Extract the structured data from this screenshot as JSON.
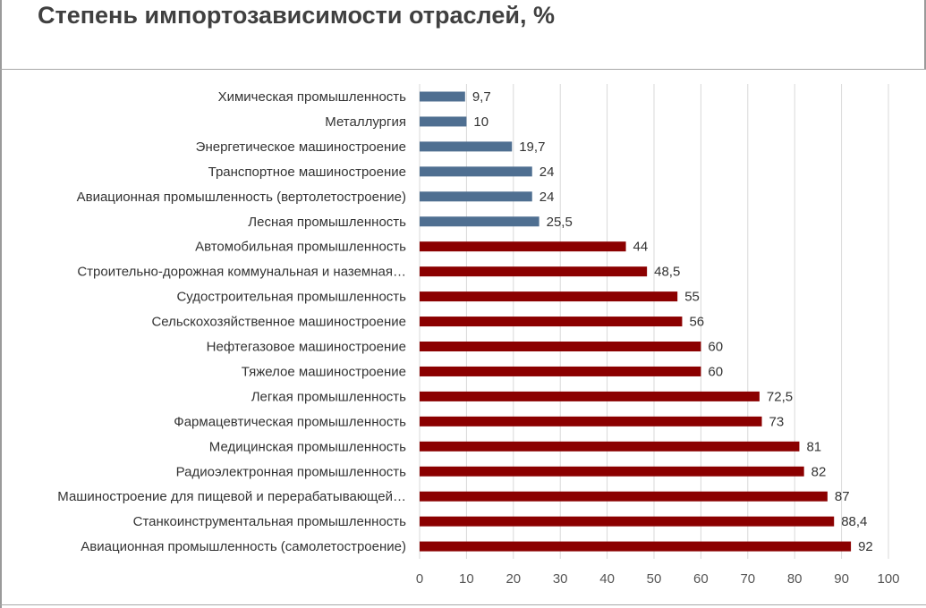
{
  "header": {
    "title": "Степень импортозависимости отраслей, %"
  },
  "colors": {
    "low_series": "#4f6f91",
    "high_series": "#8b0000",
    "grid": "#d9d9d9"
  },
  "chart_data": {
    "type": "bar",
    "orientation": "horizontal",
    "title": "Степень импортозависимости отраслей, %",
    "xlabel": "",
    "ylabel": "",
    "xlim": [
      0,
      100
    ],
    "x_ticks": [
      0,
      10,
      20,
      30,
      40,
      50,
      60,
      70,
      80,
      90,
      100
    ],
    "grid": "vertical",
    "categories": [
      "Химическая промышленность",
      "Металлургия",
      "Энергетическое машиностроение",
      "Транспортное машиностроение",
      "Авиационная промышленность (вертолетостроение)",
      "Лесная промышленность",
      "Автомобильная промышленность",
      "Строительно-дорожная коммунальная и наземная…",
      "Судостроительная промышленность",
      "Сельскохозяйственное машиностроение",
      "Нефтегазовое машиностроение",
      "Тяжелое машиностроение",
      "Легкая промышленность",
      "Фармацевтическая промышленность",
      "Медицинская промышленность",
      "Радиоэлектронная промышленность",
      "Машиностроение для пищевой и перерабатывающей…",
      "Станкоинструментальная промышленность",
      "Авиационная промышленность (самолетостроение)"
    ],
    "values": [
      9.7,
      10,
      19.7,
      24,
      24,
      25.5,
      44,
      48.5,
      55,
      56,
      60,
      60,
      72.5,
      73,
      81,
      82,
      87,
      88.4,
      92
    ],
    "value_labels": [
      "9,7",
      "10",
      "19,7",
      "24",
      "24",
      "25,5",
      "44",
      "48,5",
      "55",
      "56",
      "60",
      "60",
      "72,5",
      "73",
      "81",
      "82",
      "87",
      "88,4",
      "92"
    ],
    "bar_colors": [
      "#4f6f91",
      "#4f6f91",
      "#4f6f91",
      "#4f6f91",
      "#4f6f91",
      "#4f6f91",
      "#8b0000",
      "#8b0000",
      "#8b0000",
      "#8b0000",
      "#8b0000",
      "#8b0000",
      "#8b0000",
      "#8b0000",
      "#8b0000",
      "#8b0000",
      "#8b0000",
      "#8b0000",
      "#8b0000"
    ]
  }
}
